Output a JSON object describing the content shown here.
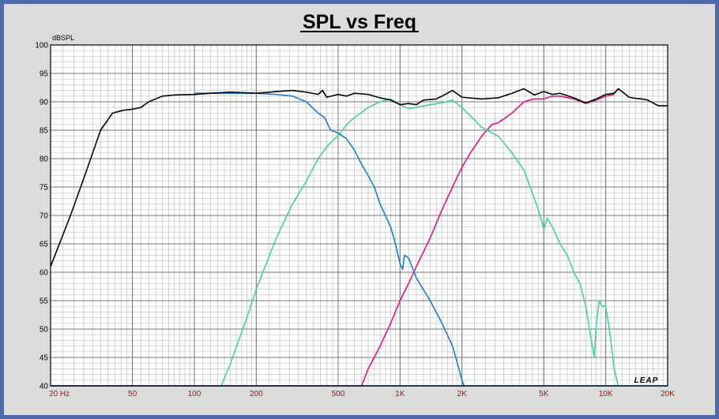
{
  "chart_data": {
    "type": "line",
    "title": "SPL vs Freq",
    "ylabel": "dBSPL",
    "xlabel": "",
    "x_scale": "log",
    "xlim": [
      20,
      20000
    ],
    "ylim": [
      40,
      100
    ],
    "y_ticks": [
      40,
      45,
      50,
      55,
      60,
      65,
      70,
      75,
      80,
      85,
      90,
      95,
      100
    ],
    "x_ticks": [
      {
        "value": 20,
        "label": "20  Hz"
      },
      {
        "value": 50,
        "label": "50"
      },
      {
        "value": 100,
        "label": "100"
      },
      {
        "value": 200,
        "label": "200"
      },
      {
        "value": 500,
        "label": "500"
      },
      {
        "value": 1000,
        "label": "1K"
      },
      {
        "value": 2000,
        "label": "2K"
      },
      {
        "value": 5000,
        "label": "5K"
      },
      {
        "value": 10000,
        "label": "10K"
      },
      {
        "value": 20000,
        "label": "20K"
      }
    ],
    "grid": true,
    "series": [
      {
        "color": "#0b7fd6",
        "points": [
          [
            20,
            40
          ],
          [
            30,
            40
          ],
          [
            60,
            40
          ],
          [
            100,
            40
          ],
          [
            200,
            40
          ],
          [
            300,
            40
          ],
          [
            400,
            40
          ],
          [
            500,
            40
          ],
          [
            600,
            40
          ],
          [
            640,
            40
          ],
          [
            700,
            40
          ],
          [
            800,
            40
          ],
          [
            1000,
            40
          ],
          [
            2000,
            40
          ],
          [
            3000,
            40
          ],
          [
            5000,
            40
          ],
          [
            10000,
            40
          ],
          [
            20000,
            40
          ]
        ]
      },
      {
        "color": "#e0157f",
        "points": [
          [
            20,
            40
          ],
          [
            100,
            40
          ],
          [
            200,
            40
          ],
          [
            400,
            40
          ],
          [
            600,
            40
          ],
          [
            650,
            40
          ],
          [
            700,
            43
          ],
          [
            800,
            47
          ],
          [
            900,
            51
          ],
          [
            1000,
            55
          ],
          [
            1100,
            58
          ],
          [
            1200,
            61
          ],
          [
            1400,
            66
          ],
          [
            1600,
            71
          ],
          [
            1800,
            75
          ],
          [
            2000,
            78.5
          ],
          [
            2200,
            81
          ],
          [
            2500,
            84
          ],
          [
            2800,
            86
          ],
          [
            3000,
            86.3
          ],
          [
            3500,
            88
          ],
          [
            4000,
            90
          ],
          [
            4500,
            90.5
          ],
          [
            5000,
            90.5
          ],
          [
            5500,
            91
          ],
          [
            6000,
            91
          ],
          [
            7000,
            90.5
          ],
          [
            8000,
            89.7
          ],
          [
            9000,
            90.3
          ],
          [
            10000,
            91
          ],
          [
            11000,
            91.3
          ]
        ]
      },
      {
        "color": "#48d0a0",
        "points": [
          [
            135,
            40
          ],
          [
            150,
            44
          ],
          [
            180,
            52
          ],
          [
            200,
            57
          ],
          [
            250,
            66
          ],
          [
            300,
            72
          ],
          [
            350,
            76
          ],
          [
            400,
            80
          ],
          [
            450,
            82.5
          ],
          [
            500,
            84
          ],
          [
            550,
            86
          ],
          [
            600,
            87.2
          ],
          [
            700,
            89
          ],
          [
            800,
            90
          ],
          [
            900,
            90.5
          ],
          [
            1000,
            89.5
          ],
          [
            1100,
            88.8
          ],
          [
            1200,
            89
          ],
          [
            1400,
            89.5
          ],
          [
            1600,
            89.8
          ],
          [
            1800,
            90.3
          ],
          [
            2000,
            89
          ],
          [
            2200,
            87.5
          ],
          [
            2500,
            85.5
          ],
          [
            2800,
            84.5
          ],
          [
            3000,
            84
          ],
          [
            3500,
            81
          ],
          [
            4000,
            78
          ],
          [
            4500,
            73
          ],
          [
            4800,
            70
          ],
          [
            5000,
            67.5
          ],
          [
            5200,
            69.5
          ],
          [
            5500,
            68
          ],
          [
            6000,
            65
          ],
          [
            6500,
            63
          ],
          [
            7000,
            60
          ],
          [
            7500,
            58
          ],
          [
            8000,
            54
          ],
          [
            8500,
            48
          ],
          [
            8800,
            45
          ],
          [
            9000,
            51
          ],
          [
            9300,
            55
          ],
          [
            9600,
            54
          ],
          [
            10000,
            54
          ],
          [
            10500,
            49
          ],
          [
            11000,
            43
          ],
          [
            11500,
            40
          ]
        ]
      },
      {
        "color": "#1a7ed8",
        "points": [
          [
            20,
            40
          ],
          [
            100,
            40
          ],
          [
            200,
            40
          ],
          [
            300,
            40
          ],
          [
            400,
            40
          ],
          [
            500,
            40
          ],
          [
            600,
            40
          ],
          [
            1000,
            40
          ],
          [
            2000,
            40
          ],
          [
            2050,
            40
          ],
          [
            20000,
            40
          ]
        ]
      },
      {
        "color": "#1a7ed8",
        "points": [
          [
            100,
            91.5
          ],
          [
            150,
            91.5
          ],
          [
            200,
            91.5
          ],
          [
            250,
            91.3
          ],
          [
            300,
            91
          ],
          [
            350,
            90
          ],
          [
            400,
            88
          ],
          [
            430,
            87.2
          ],
          [
            460,
            85
          ],
          [
            500,
            84.5
          ],
          [
            550,
            83.5
          ],
          [
            600,
            81.5
          ],
          [
            650,
            79
          ],
          [
            700,
            77
          ],
          [
            750,
            75
          ],
          [
            800,
            72
          ],
          [
            900,
            68
          ],
          [
            950,
            65
          ],
          [
            1000,
            61.5
          ],
          [
            1030,
            60.5
          ],
          [
            1050,
            63
          ],
          [
            1100,
            62.5
          ],
          [
            1200,
            59
          ],
          [
            1400,
            55
          ],
          [
            1600,
            51
          ],
          [
            1800,
            47
          ],
          [
            1900,
            44
          ],
          [
            2000,
            41
          ],
          [
            2050,
            40
          ]
        ]
      },
      {
        "color": "#000000",
        "points": [
          [
            20,
            61
          ],
          [
            25,
            70
          ],
          [
            30,
            78
          ],
          [
            35,
            85
          ],
          [
            40,
            88
          ],
          [
            45,
            88.5
          ],
          [
            50,
            88.7
          ],
          [
            55,
            89
          ],
          [
            60,
            90
          ],
          [
            70,
            91
          ],
          [
            80,
            91.2
          ],
          [
            100,
            91.3
          ],
          [
            120,
            91.5
          ],
          [
            150,
            91.7
          ],
          [
            200,
            91.5
          ],
          [
            250,
            91.8
          ],
          [
            300,
            92
          ],
          [
            350,
            91.7
          ],
          [
            400,
            91.3
          ],
          [
            420,
            92
          ],
          [
            440,
            90.8
          ],
          [
            500,
            91.3
          ],
          [
            550,
            91
          ],
          [
            600,
            91.5
          ],
          [
            700,
            91.3
          ],
          [
            800,
            90.7
          ],
          [
            900,
            90.3
          ],
          [
            1000,
            89.5
          ],
          [
            1100,
            89.7
          ],
          [
            1200,
            89.5
          ],
          [
            1300,
            90.3
          ],
          [
            1500,
            90.5
          ],
          [
            1600,
            91
          ],
          [
            1800,
            92
          ],
          [
            2000,
            90.8
          ],
          [
            2500,
            90.5
          ],
          [
            3000,
            90.7
          ],
          [
            3500,
            91.5
          ],
          [
            4000,
            92.3
          ],
          [
            4500,
            91.2
          ],
          [
            5000,
            91.8
          ],
          [
            5500,
            91.3
          ],
          [
            6000,
            91.5
          ],
          [
            7000,
            90.7
          ],
          [
            8000,
            89.8
          ],
          [
            9000,
            90.5
          ],
          [
            10000,
            91.3
          ],
          [
            11000,
            91.5
          ],
          [
            11500,
            92.3
          ],
          [
            12000,
            91.8
          ],
          [
            13000,
            90.8
          ],
          [
            14000,
            90.6
          ],
          [
            15000,
            90.5
          ],
          [
            16000,
            90.3
          ],
          [
            17000,
            89.8
          ],
          [
            18000,
            89.3
          ],
          [
            20000,
            89.3
          ]
        ]
      }
    ]
  },
  "colors": {
    "frame_border": "#4e6aa8",
    "frame_bg": "#dcdcdc",
    "plot_bg": "#ffffff",
    "x_tick_label": "#8b1a1a",
    "logo": "#000000"
  },
  "logo": {
    "text": "LEAP"
  }
}
